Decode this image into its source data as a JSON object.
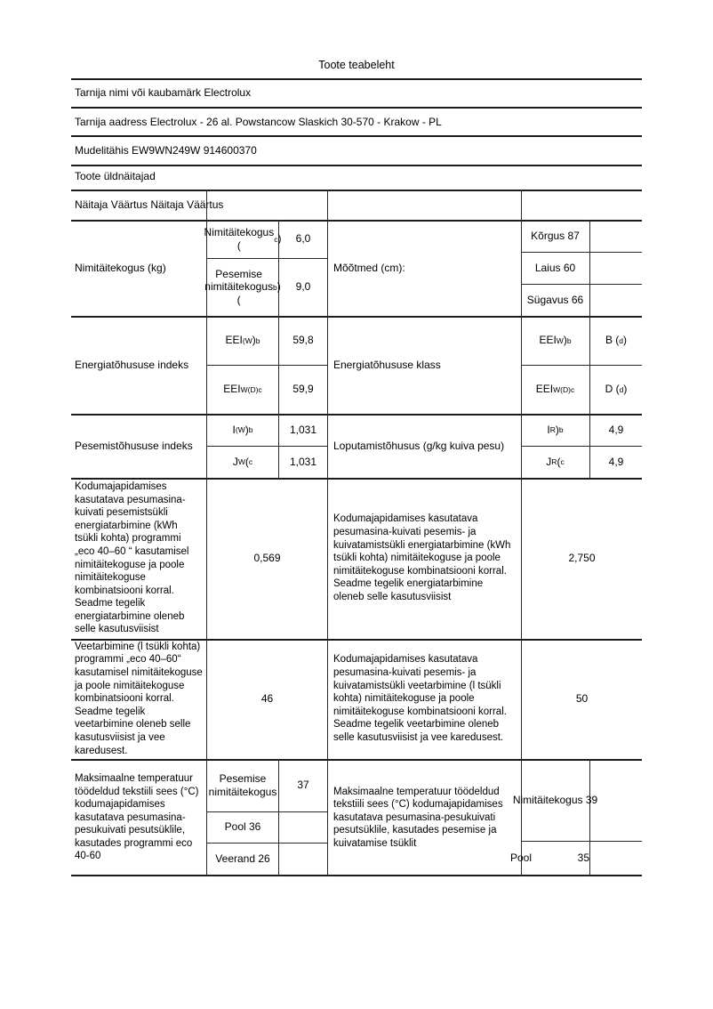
{
  "document": {
    "title": "Toote teabeleht",
    "supplier": "Tarnija nimi või kaubamärk Electrolux",
    "address": "Tarnija aadress Electrolux - 26 al. Powstancow Slaskich 30-570 - Krakow - PL",
    "model": "Mudelitähis EW9WN249W 914600370",
    "section": "Toote üldnäitajad",
    "table_header": "Näitaja Väärtus Näitaja Väärtus"
  },
  "capacity": {
    "label": "Nimitäitekogus (kg)",
    "rated_label": [
      {
        "t": "Nimitäitekogus ("
      },
      {
        "sup": "c"
      },
      {
        "t": ")"
      }
    ],
    "rated_value": "6,0",
    "wash_label": [
      {
        "t": "Pesemise nimitäitekogus ("
      },
      {
        "sup": "b"
      },
      {
        "t": ")"
      }
    ],
    "wash_value": "9,0"
  },
  "dimensions": {
    "label": "Mõõtmed (cm):",
    "height": "Kõrgus 87",
    "width": "Laius 60",
    "depth": "Sügavus 66"
  },
  "energy_index": {
    "label": "Energiatõhususe indeks",
    "eei_w_label": [
      {
        "t": "EEI"
      },
      {
        "sub": "(W"
      },
      {
        "t": ")"
      },
      {
        "sup": "b"
      }
    ],
    "eei_w_value": "59,8",
    "eei_wd_label": [
      {
        "t": "EEI"
      },
      {
        "sub": "W(D)"
      },
      {
        "t": " "
      },
      {
        "sup": "c"
      }
    ],
    "eei_wd_value": "59,9"
  },
  "energy_class": {
    "label": "Energiatõhususe klass",
    "eei_w_label": [
      {
        "t": "EEI"
      },
      {
        "sub": "W"
      },
      {
        "t": ")"
      },
      {
        "sup": "b"
      }
    ],
    "eei_w_value": [
      {
        "t": "B ("
      },
      {
        "sup": "d"
      },
      {
        "t": ")"
      }
    ],
    "eei_wd_label": [
      {
        "t": "EEI"
      },
      {
        "sub": "W(D)"
      },
      {
        "t": " "
      },
      {
        "sup": "c"
      }
    ],
    "eei_wd_value": [
      {
        "t": "D ("
      },
      {
        "sup": "d"
      },
      {
        "t": ")"
      }
    ]
  },
  "washing_index": {
    "label": "Pesemistõhususe indeks",
    "iw_label": [
      {
        "t": "I"
      },
      {
        "sub": "(W"
      },
      {
        "t": ")"
      },
      {
        "sup": "b"
      }
    ],
    "iw_value": "1,031",
    "jw_label": [
      {
        "t": "J"
      },
      {
        "sub": "W"
      },
      {
        "t": "( "
      },
      {
        "sup": "c"
      }
    ],
    "jw_value": "1,031"
  },
  "rinsing": {
    "label": "Loputamistõhusus (g/kg kuiva pesu)",
    "ir_label": [
      {
        "t": "I"
      },
      {
        "sub": "R"
      },
      {
        "t": ")"
      },
      {
        "sup": "b"
      }
    ],
    "ir_value": "4,9",
    "jr_label": [
      {
        "t": "J"
      },
      {
        "sub": "R"
      },
      {
        "t": "( "
      },
      {
        "sup": "c"
      }
    ],
    "jr_value": "4,9"
  },
  "energy_consumption": {
    "wash_text": "Kodumajapidamises kasutatava pesumasina-kuivati pesemistsükli energiatarbimine (kWh tsükli kohta) programmi „eco 40–60 “ kasutamisel nimitäitekoguse ja poole nimitäitekoguse kombinatsiooni korral. Seadme tegelik energiatarbimine oleneb selle kasutusviisist",
    "wash_value": "0,569",
    "full_text": "Kodumajapidamises kasutatava pesumasina-kuivati pesemis- ja kuivatamistsükli energiatarbimine (kWh tsükli kohta) nimitäitekoguse ja poole nimitäitekoguse kombinatsiooni korral. Seadme tegelik energiatarbimine oleneb selle kasutusviisist",
    "full_value": "2,750"
  },
  "water_consumption": {
    "wash_text": "Veetarbimine (l tsükli kohta) programmi „eco 40–60“ kasutamisel nimitäitekoguse ja poole nimitäitekoguse kombinatsiooni korral. Seadme tegelik veetarbimine oleneb selle kasutusviisist ja vee karedusest.",
    "wash_value": "46",
    "full_text": "Kodumajapidamises kasutatava pesumasina-kuivati pesemis- ja kuivatamistsükli veetarbimine (l tsükli kohta) nimitäitekoguse ja poole nimitäitekoguse kombinatsiooni korral. Seadme tegelik veetarbimine oleneb selle kasutusviisist ja vee karedusest.",
    "full_value": "50"
  },
  "max_temperature": {
    "wash_text": "Maksimaalne temperatuur töödeldud tekstiili sees (°C) kodumajapidamises kasutatava pesumasina-pesukuivati pesutsüklile, kasutades programmi eco 40-60",
    "rated_label": "Pesemise nimitäitekogus",
    "rated_value": "37",
    "half_label": "Pool 36",
    "quarter_label": "Veerand 26",
    "full_text": "Maksimaalne temperatuur töödeldud tekstiili sees (°C) kodumajapidamises kasutatava pesumasina-pesukuivati pesutsüklile, kasutades pesemise ja kuivatamise tsüklit",
    "rated_right_label": "Nimitäitekogus 39",
    "half_right_label": "Pool",
    "half_right_value": "35"
  }
}
